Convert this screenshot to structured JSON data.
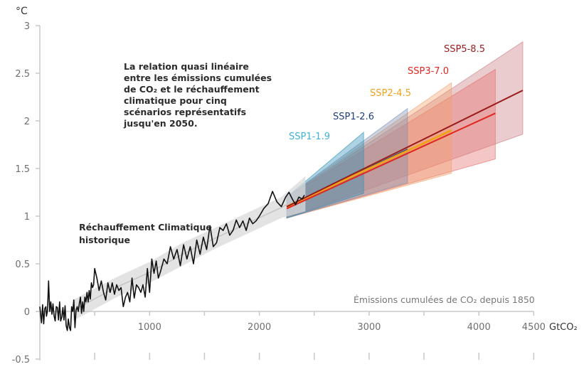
{
  "chart_data": {
    "type": "line",
    "title": "",
    "ylabel": "°C",
    "xlabel_caption": "Émissions cumulées de CO₂ depuis 1850",
    "xunit": "GtCO₂",
    "xlim": [
      0,
      4500
    ],
    "ylim": [
      -0.5,
      3
    ],
    "x_ticks": [
      0,
      500,
      1000,
      1500,
      2000,
      2500,
      3000,
      3500,
      4000,
      4500
    ],
    "x_tick_labels": [
      {
        "value": 1000,
        "label": "1000"
      },
      {
        "value": 2000,
        "label": "2000"
      },
      {
        "value": 3000,
        "label": "3000"
      },
      {
        "value": 4000,
        "label": "4000"
      },
      {
        "value": 4500,
        "label": "4500"
      }
    ],
    "y_ticks": [
      {
        "value": 3,
        "label": "3"
      },
      {
        "value": 2.5,
        "label": "2.5"
      },
      {
        "value": 2,
        "label": "2"
      },
      {
        "value": 1.5,
        "label": "1.5"
      },
      {
        "value": 1,
        "label": "1"
      },
      {
        "value": 0.5,
        "label": "0.5"
      },
      {
        "value": 0,
        "label": "0"
      },
      {
        "value": -0.5,
        "label": "-0.5"
      }
    ],
    "annotations": {
      "main_text": [
        "La relation quasi linéaire",
        "entre les émissions cumulées",
        "de CO₂ et le réchauffement",
        "climatique pour cinq",
        "scénarios représentatifs",
        "jusqu'en 2050."
      ],
      "historical_label": [
        "Réchauffement Climatique",
        "historique"
      ]
    },
    "historical": {
      "name": "Réchauffement Climatique historique",
      "color": "#111111",
      "band_color": "#d9d9d9",
      "x": [
        0,
        15,
        25,
        35,
        45,
        55,
        60,
        70,
        80,
        90,
        100,
        110,
        120,
        130,
        140,
        150,
        160,
        170,
        180,
        190,
        200,
        210,
        220,
        230,
        240,
        250,
        260,
        270,
        280,
        290,
        300,
        310,
        320,
        330,
        340,
        350,
        360,
        370,
        380,
        390,
        400,
        410,
        420,
        430,
        440,
        450,
        460,
        470,
        480,
        490,
        500,
        520,
        540,
        560,
        580,
        600,
        620,
        640,
        660,
        680,
        700,
        720,
        740,
        760,
        780,
        800,
        820,
        840,
        860,
        880,
        900,
        920,
        940,
        960,
        980,
        1000,
        1020,
        1040,
        1060,
        1080,
        1100,
        1130,
        1160,
        1190,
        1220,
        1250,
        1280,
        1310,
        1340,
        1370,
        1400,
        1430,
        1460,
        1490,
        1520,
        1550,
        1580,
        1610,
        1640,
        1670,
        1700,
        1730,
        1760,
        1790,
        1820,
        1850,
        1880,
        1910,
        1940,
        1970,
        2000,
        2040,
        2080,
        2120,
        2160,
        2200,
        2240,
        2270,
        2300,
        2330,
        2360,
        2390,
        2410
      ],
      "y": [
        0.05,
        -0.12,
        0.07,
        -0.13,
        0.03,
        0.05,
        -0.05,
        0.01,
        0.32,
        0.0,
        0.1,
        -0.03,
        0.08,
        -0.05,
        -0.1,
        0.05,
        0.04,
        -0.09,
        0.1,
        -0.1,
        -0.06,
        0.04,
        -0.09,
        0.06,
        -0.15,
        -0.2,
        -0.08,
        -0.17,
        -0.2,
        0.05,
        0.0,
        0.12,
        -0.17,
        0.01,
        0.05,
        0.0,
        0.08,
        0.15,
        -0.02,
        0.1,
        0.0,
        0.15,
        0.1,
        0.2,
        0.1,
        0.22,
        0.13,
        0.3,
        0.25,
        0.28,
        0.45,
        0.35,
        0.22,
        0.32,
        0.2,
        0.12,
        0.3,
        0.2,
        0.3,
        0.18,
        0.28,
        0.22,
        0.25,
        0.05,
        0.15,
        0.2,
        0.1,
        0.35,
        0.14,
        0.28,
        0.25,
        0.2,
        0.28,
        0.15,
        0.45,
        0.2,
        0.55,
        0.4,
        0.53,
        0.35,
        0.42,
        0.55,
        0.5,
        0.68,
        0.55,
        0.65,
        0.48,
        0.7,
        0.55,
        0.68,
        0.5,
        0.75,
        0.6,
        0.78,
        0.65,
        0.9,
        0.68,
        0.72,
        0.88,
        0.85,
        0.92,
        0.8,
        0.85,
        0.96,
        0.88,
        0.95,
        0.85,
        0.98,
        0.92,
        0.95,
        1.0,
        1.08,
        1.13,
        1.26,
        1.15,
        1.1,
        1.2,
        1.25,
        1.18,
        1.12,
        1.2,
        1.18,
        1.22
      ]
    },
    "historical_band": {
      "x": [
        300,
        700,
        1000,
        1300,
        1600,
        1900,
        2200,
        2420
      ],
      "lower": [
        -0.1,
        0.15,
        0.3,
        0.48,
        0.66,
        0.82,
        0.98,
        1.05
      ],
      "upper": [
        0.12,
        0.36,
        0.52,
        0.72,
        0.88,
        1.04,
        1.2,
        1.42
      ]
    },
    "series": [
      {
        "name": "SSP1-1.9",
        "color": "#3fb2d9",
        "band_color": "#2a8fb5",
        "x_start": 2250,
        "x_end": 2950,
        "start": 1.1,
        "end": 1.5,
        "band_start": [
          0.98,
          1.2
        ],
        "band_end": [
          1.24,
          1.88
        ]
      },
      {
        "name": "SSP1-2.6",
        "color": "#1f3f73",
        "band_color": "#7a8fb5",
        "x_start": 2250,
        "x_end": 3350,
        "start": 1.1,
        "end": 1.7,
        "band_start": [
          0.98,
          1.2
        ],
        "band_end": [
          1.35,
          2.13
        ]
      },
      {
        "name": "SSP2-4.5",
        "color": "#f0a21c",
        "band_color": "#f2a06a",
        "x_start": 2250,
        "x_end": 3750,
        "start": 1.1,
        "end": 1.9,
        "band_start": [
          0.98,
          1.2
        ],
        "band_end": [
          1.45,
          2.4
        ]
      },
      {
        "name": "SSP3-7.0",
        "color": "#e0261f",
        "band_color": "#e46a6a",
        "x_start": 2250,
        "x_end": 4150,
        "start": 1.08,
        "end": 2.08,
        "band_start": [
          0.98,
          1.2
        ],
        "band_end": [
          1.6,
          2.54
        ]
      },
      {
        "name": "SSP5-8.5",
        "color": "#991b1b",
        "band_color": "#c97a7f",
        "x_start": 2250,
        "x_end": 4400,
        "start": 1.1,
        "end": 2.32,
        "band_start": [
          0.98,
          1.2
        ],
        "band_end": [
          1.86,
          2.83
        ]
      }
    ],
    "legend": "inline-labels",
    "grid": false
  }
}
